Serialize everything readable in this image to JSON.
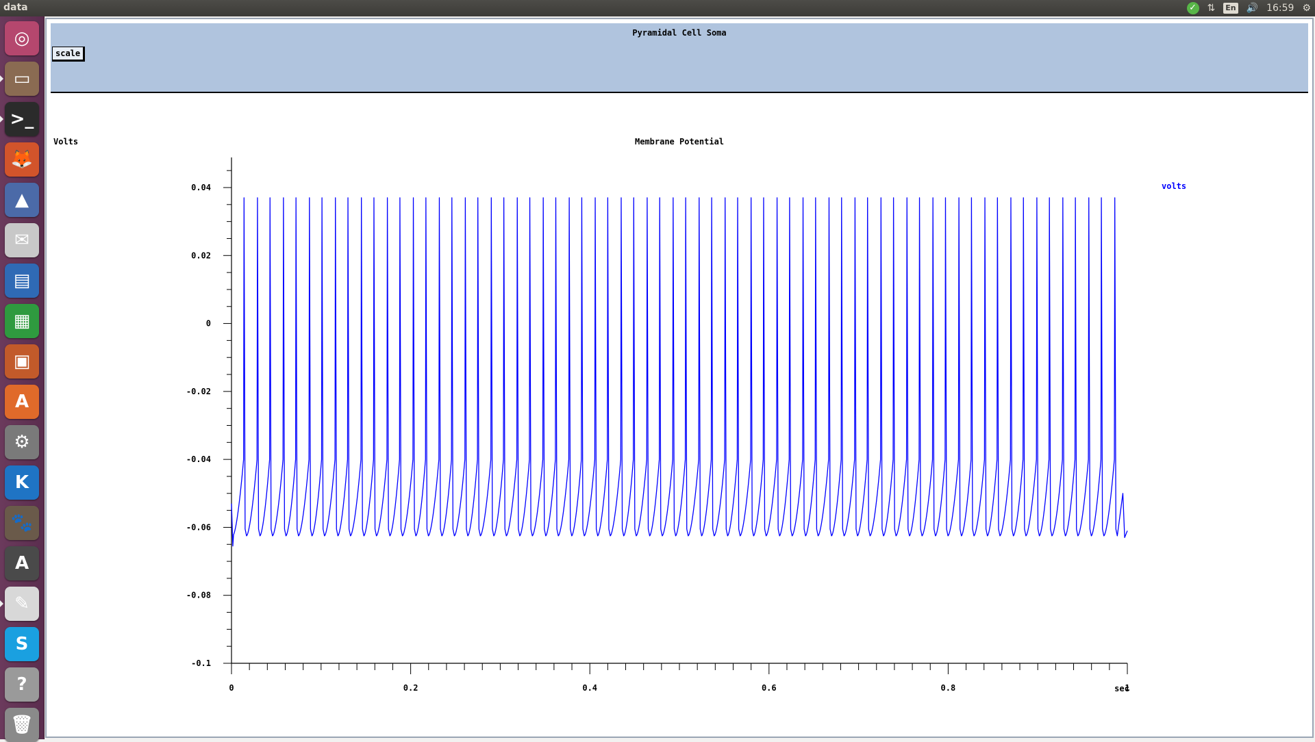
{
  "topbar": {
    "title": "data",
    "tray": {
      "ok_glyph": "✓",
      "network_glyph": "⇅",
      "lang": "En",
      "volume_glyph": "🔊",
      "clock": "16:59",
      "gear_glyph": "⚙"
    }
  },
  "launcher": {
    "items": [
      {
        "name": "dash-home-icon",
        "glyph": "◎",
        "bg": "#b5476e"
      },
      {
        "name": "files-icon",
        "glyph": "▭",
        "bg": "#8a6b52"
      },
      {
        "name": "terminal-icon",
        "glyph": ">_",
        "bg": "#2b2b2b"
      },
      {
        "name": "firefox-icon",
        "glyph": "🦊",
        "bg": "#d2542b"
      },
      {
        "name": "matlab-icon",
        "glyph": "▲",
        "bg": "#4b6aa8"
      },
      {
        "name": "mail-icon",
        "glyph": "✉",
        "bg": "#c8c8c8"
      },
      {
        "name": "writer-icon",
        "glyph": "▤",
        "bg": "#2f6ab5"
      },
      {
        "name": "calc-icon",
        "glyph": "▦",
        "bg": "#2f9a3f"
      },
      {
        "name": "impress-icon",
        "glyph": "▣",
        "bg": "#c25a2a"
      },
      {
        "name": "software-center-icon",
        "glyph": "A",
        "bg": "#e06a2a"
      },
      {
        "name": "system-settings-icon",
        "glyph": "⚙",
        "bg": "#7a7a7a"
      },
      {
        "name": "kile-icon",
        "glyph": "K",
        "bg": "#1f74c4"
      },
      {
        "name": "gimp-icon",
        "glyph": "🐾",
        "bg": "#6a5a4a"
      },
      {
        "name": "software-updater-icon",
        "glyph": "A",
        "bg": "#4a4a4a"
      },
      {
        "name": "text-editor-icon",
        "glyph": "✎",
        "bg": "#d8d8d8"
      },
      {
        "name": "skype-icon",
        "glyph": "S",
        "bg": "#1aa0e0"
      },
      {
        "name": "help-icon",
        "glyph": "?",
        "bg": "#9a9a9a"
      },
      {
        "name": "trash-icon",
        "glyph": "🗑",
        "bg": "#8a8a8a"
      }
    ]
  },
  "app": {
    "title": "Pyramidal Cell Soma",
    "scale_button": "scale"
  },
  "plot": {
    "ylabel": "Volts",
    "title": "Membrane Potential",
    "legend": "volts",
    "xunit": "sec",
    "line_color": "#0000ff",
    "text_color": "#000000",
    "legend_color": "#0000ff"
  },
  "chart_data": {
    "type": "line",
    "title": "Membrane Potential",
    "ylabel": "Volts",
    "xlabel": "sec",
    "xlim": [
      0,
      1
    ],
    "ylim": [
      -0.1,
      0.04
    ],
    "xticks": [
      "0",
      "0.2",
      "0.4",
      "0.6",
      "0.8",
      "1"
    ],
    "yticks": [
      "0.04",
      "0.02",
      "0",
      "-0.02",
      "-0.04",
      "-0.06",
      "-0.08",
      "-0.1"
    ],
    "series": [
      {
        "name": "volts",
        "spike_times": [
          0.014,
          0.029,
          0.043,
          0.058,
          0.072,
          0.087,
          0.101,
          0.116,
          0.13,
          0.145,
          0.159,
          0.174,
          0.188,
          0.203,
          0.217,
          0.232,
          0.246,
          0.261,
          0.275,
          0.29,
          0.304,
          0.319,
          0.333,
          0.348,
          0.362,
          0.377,
          0.391,
          0.406,
          0.42,
          0.435,
          0.449,
          0.464,
          0.478,
          0.493,
          0.507,
          0.522,
          0.536,
          0.551,
          0.565,
          0.58,
          0.594,
          0.609,
          0.623,
          0.638,
          0.652,
          0.667,
          0.681,
          0.696,
          0.71,
          0.725,
          0.739,
          0.754,
          0.768,
          0.783,
          0.797,
          0.812,
          0.826,
          0.841,
          0.855,
          0.87,
          0.884,
          0.899,
          0.913,
          0.928,
          0.942,
          0.957,
          0.971,
          0.986
        ],
        "spike_peak": 0.037,
        "trough": -0.0625,
        "threshold": -0.04,
        "initial": -0.053,
        "end_value": -0.061
      }
    ]
  }
}
